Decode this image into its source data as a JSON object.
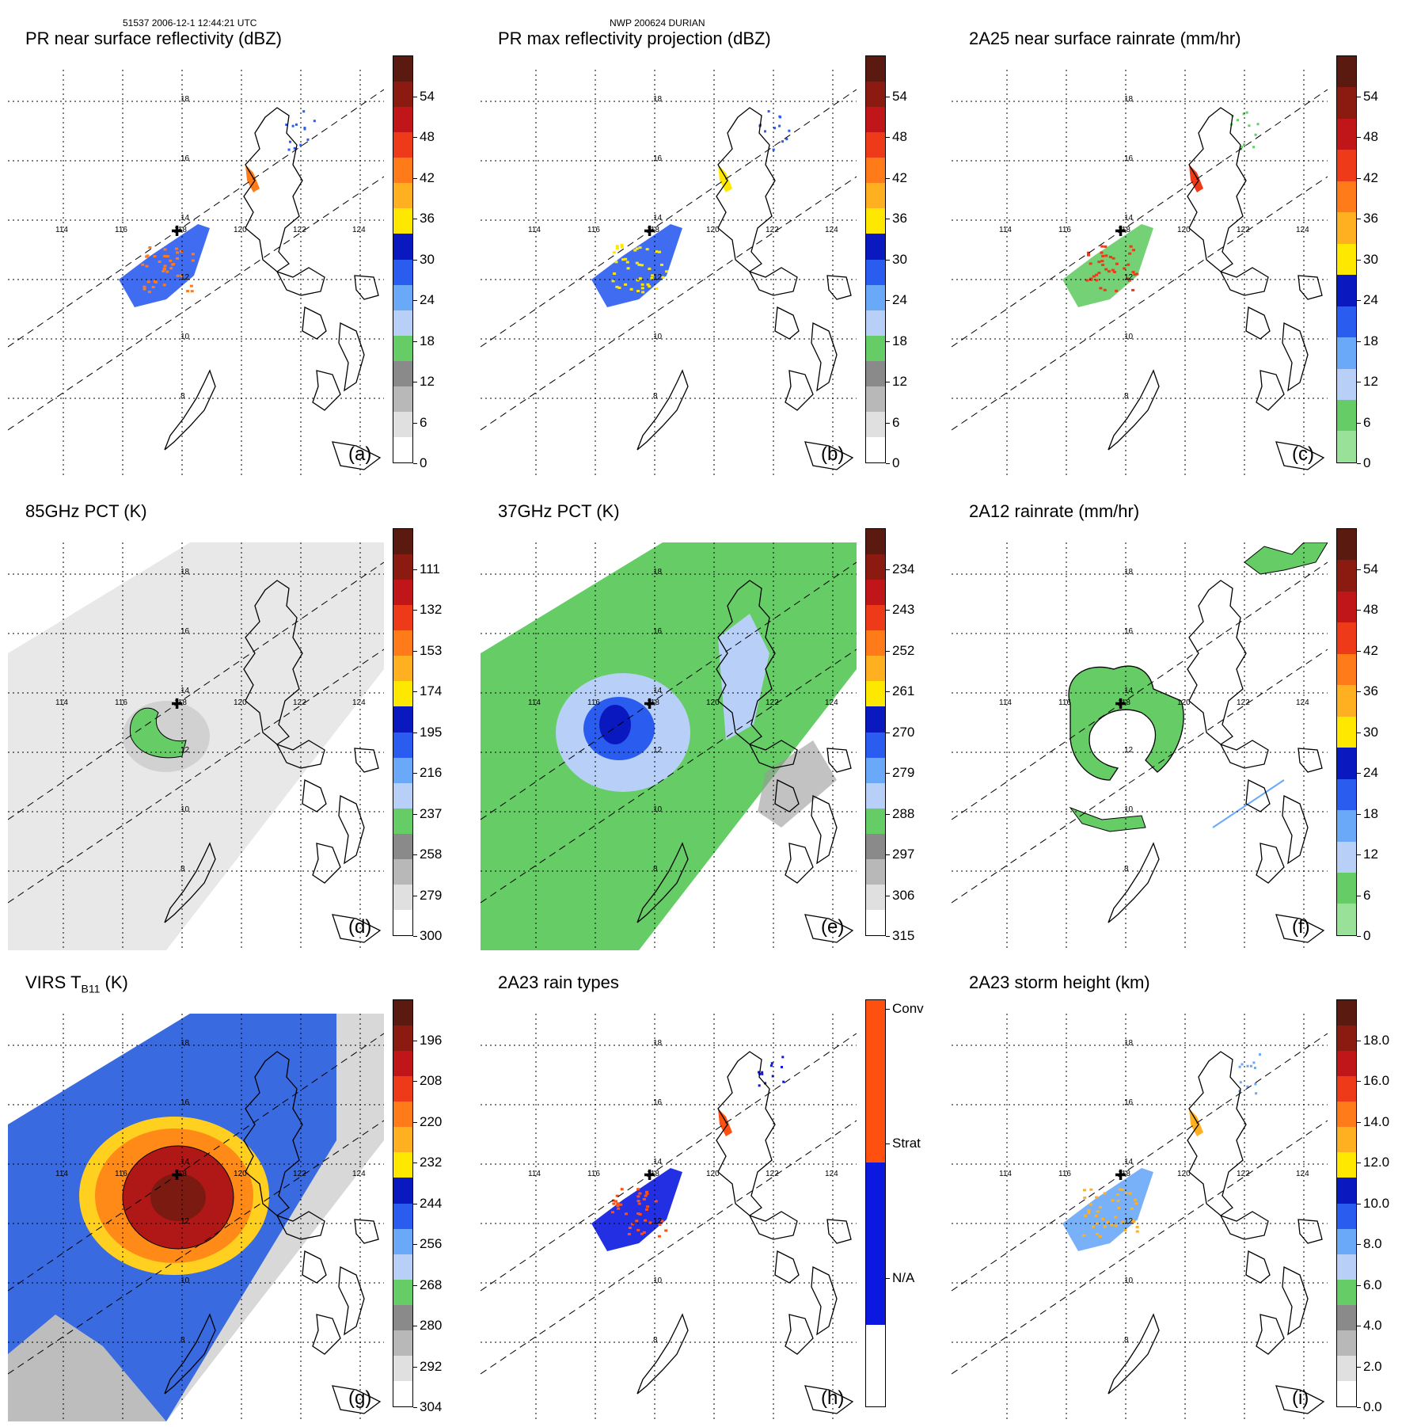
{
  "header": {
    "orbit_time": "51537 2006-12-1 12:44:21 UTC",
    "storm": "NWP 200624 DURIAN"
  },
  "lat_labels": [
    "18",
    "16",
    "14",
    "12",
    "10",
    "8"
  ],
  "lon_labels": [
    "114",
    "116",
    "118",
    "120",
    "122",
    "124"
  ],
  "panels": [
    {
      "title": "PR near surface reflectivity (dBZ)",
      "letter": "(a)",
      "ticks": [
        "54",
        "48",
        "42",
        "36",
        "30",
        "24",
        "18",
        "12",
        "6",
        "0"
      ],
      "palette": "refl",
      "field": "pr_small"
    },
    {
      "title": "PR max reflectivity projection (dBZ)",
      "letter": "(b)",
      "ticks": [
        "54",
        "48",
        "42",
        "36",
        "30",
        "24",
        "18",
        "12",
        "6",
        "0"
      ],
      "palette": "refl",
      "field": "pr_small_b"
    },
    {
      "title": "2A25 near surface rainrate (mm/hr)",
      "letter": "(c)",
      "ticks": [
        "54",
        "48",
        "42",
        "36",
        "30",
        "24",
        "18",
        "12",
        "6",
        "0"
      ],
      "palette": "rain",
      "field": "pr_small_c"
    },
    {
      "title": "85GHz PCT (K)",
      "letter": "(d)",
      "ticks": [
        "111",
        "132",
        "153",
        "174",
        "195",
        "216",
        "237",
        "258",
        "279",
        "300"
      ],
      "palette": "refl",
      "field": "gray_swath"
    },
    {
      "title": "37GHz PCT (K)",
      "letter": "(e)",
      "ticks": [
        "234",
        "243",
        "252",
        "261",
        "270",
        "279",
        "288",
        "297",
        "306",
        "315"
      ],
      "palette": "refl",
      "field": "green_swath"
    },
    {
      "title": "2A12 rainrate (mm/hr)",
      "letter": "(f)",
      "ticks": [
        "54",
        "48",
        "42",
        "36",
        "30",
        "24",
        "18",
        "12",
        "6",
        "0"
      ],
      "palette": "rain",
      "field": "green_ring"
    },
    {
      "title": "VIRS T",
      "title_sub": "B11",
      "title_tail": " (K)",
      "letter": "(g)",
      "ticks": [
        "196",
        "208",
        "220",
        "232",
        "244",
        "256",
        "268",
        "280",
        "292",
        "304"
      ],
      "palette": "refl",
      "field": "ir_swath"
    },
    {
      "title": "2A23 rain types",
      "letter": "(h)",
      "ticks": [
        "Conv",
        "Strat",
        "N/A"
      ],
      "palette": "types",
      "field": "types"
    },
    {
      "title": "2A23 storm height (km)",
      "letter": "(i)",
      "ticks": [
        "18.0",
        "16.0",
        "14.0",
        "12.0",
        "10.0",
        "8.0",
        "6.0",
        "4.0",
        "2.0",
        "0.0"
      ],
      "palette": "refl",
      "field": "height"
    }
  ],
  "palettes": {
    "refl": [
      "#5a1a10",
      "#8b1a10",
      "#c0161a",
      "#ee3a18",
      "#ff7a18",
      "#ffb020",
      "#ffe800",
      "#0a18c0",
      "#2a5cf0",
      "#6aa8f8",
      "#b8d0f8",
      "#66cc66",
      "#8a8a8a",
      "#b8b8b8",
      "#e0e0e0",
      "#ffffff"
    ],
    "rain": [
      "#5a1a10",
      "#8b1a10",
      "#c0161a",
      "#ee3a18",
      "#ff7a18",
      "#ffb020",
      "#ffe800",
      "#0a18c0",
      "#2a5cf0",
      "#6aa8f8",
      "#b8d0f8",
      "#66cc66",
      "#99e099"
    ],
    "types": [
      "#ff5010",
      "#ff5010",
      "#0a18e0",
      "#0a18e0",
      "#ffffff"
    ]
  },
  "colors": {
    "coast": "#000000",
    "gray_swath": "#e8e8e8",
    "green_swath": "#66cc66",
    "ir_blue": "#3a6ae0",
    "ir_red": "#b01818",
    "ir_orange": "#ff8a18",
    "ir_yellow": "#ffd020"
  }
}
